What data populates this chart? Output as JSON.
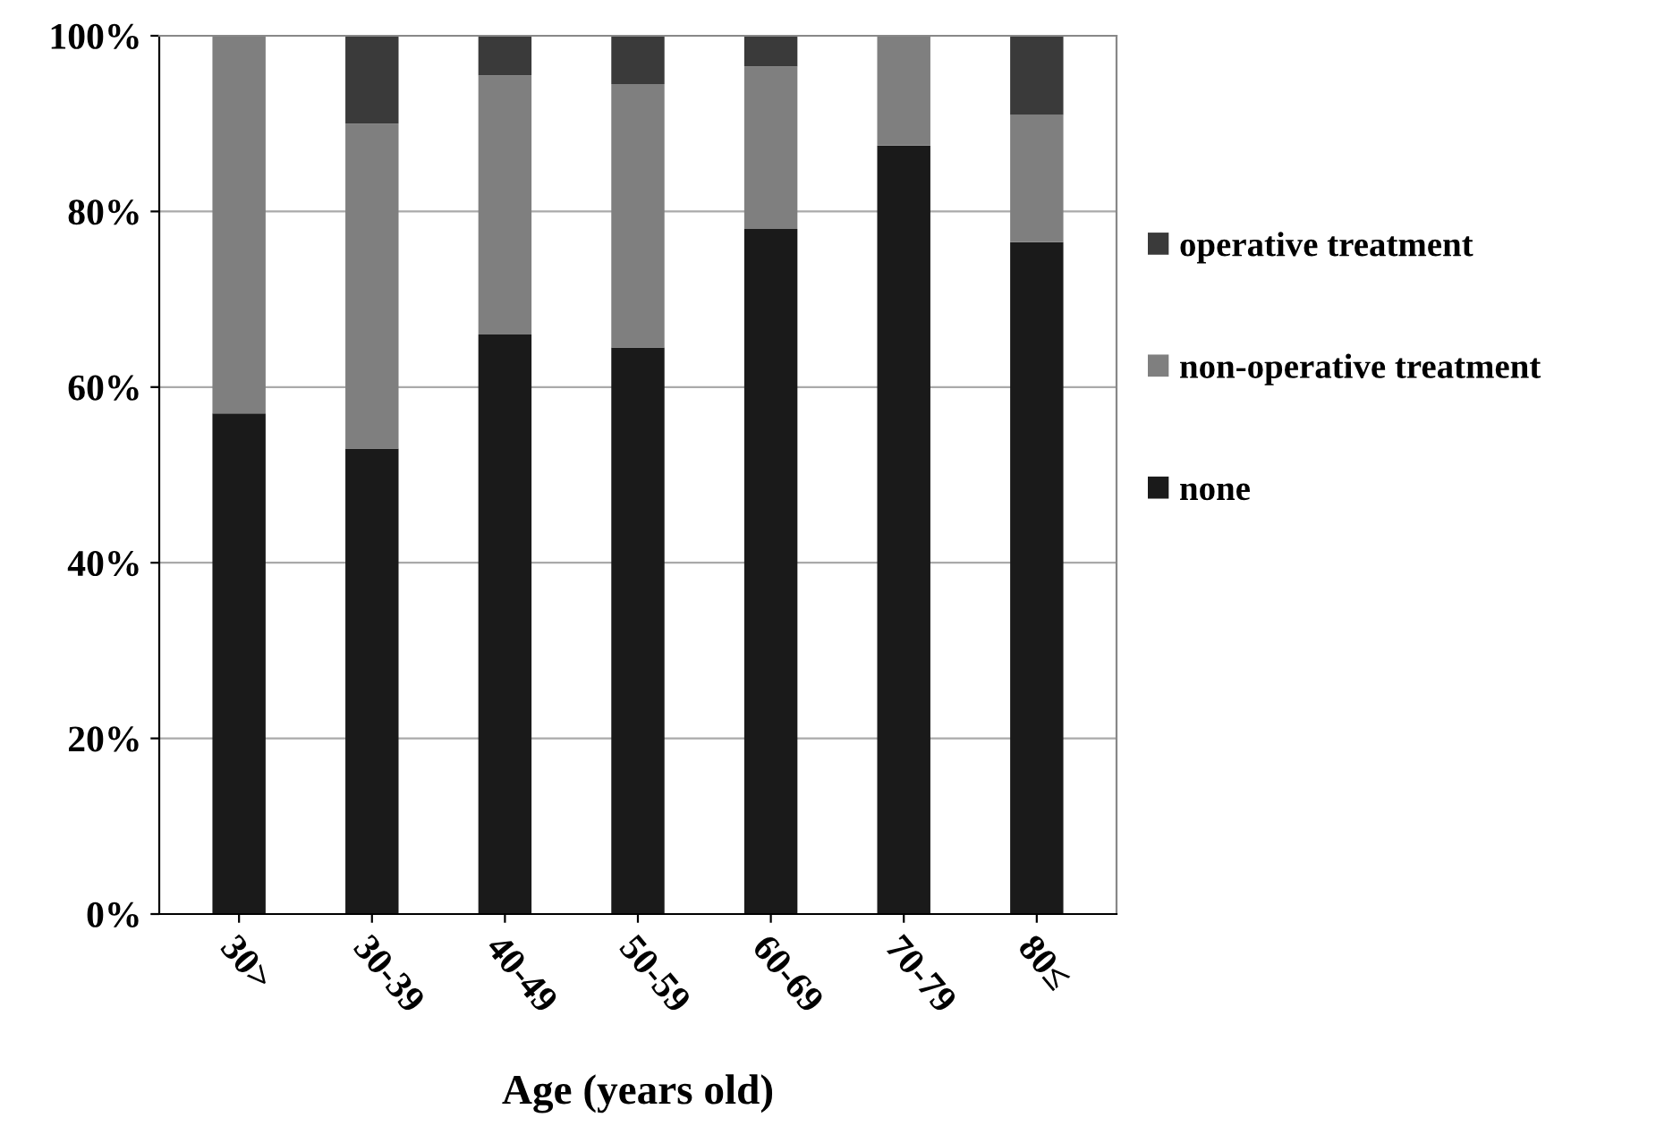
{
  "chart_data": {
    "type": "bar",
    "stacked": true,
    "xlabel": "Age (years old)",
    "categories": [
      "30>",
      "30-39",
      "40-49",
      "50-59",
      "60-69",
      "70-79",
      "80≤"
    ],
    "series": [
      {
        "name": "none",
        "color": "#1a1a1a",
        "values": [
          57,
          53,
          66,
          64.5,
          78,
          87.5,
          76.5
        ]
      },
      {
        "name": "non-operative treatment",
        "color": "#7f7f7f",
        "values": [
          43,
          37,
          29.5,
          30,
          18.5,
          12.5,
          14.5
        ]
      },
      {
        "name": "operative treatment",
        "color": "#3a3a3a",
        "values": [
          0,
          10,
          4.5,
          5.5,
          3.5,
          0,
          9
        ]
      }
    ],
    "ylim": [
      0,
      100
    ],
    "yticks": [
      {
        "value": 0,
        "label": "0%"
      },
      {
        "value": 20,
        "label": "20%"
      },
      {
        "value": 40,
        "label": "40%"
      },
      {
        "value": 60,
        "label": "60%"
      },
      {
        "value": 80,
        "label": "80%"
      },
      {
        "value": 100,
        "label": "100%"
      }
    ],
    "grid": "y",
    "legend": "right"
  }
}
